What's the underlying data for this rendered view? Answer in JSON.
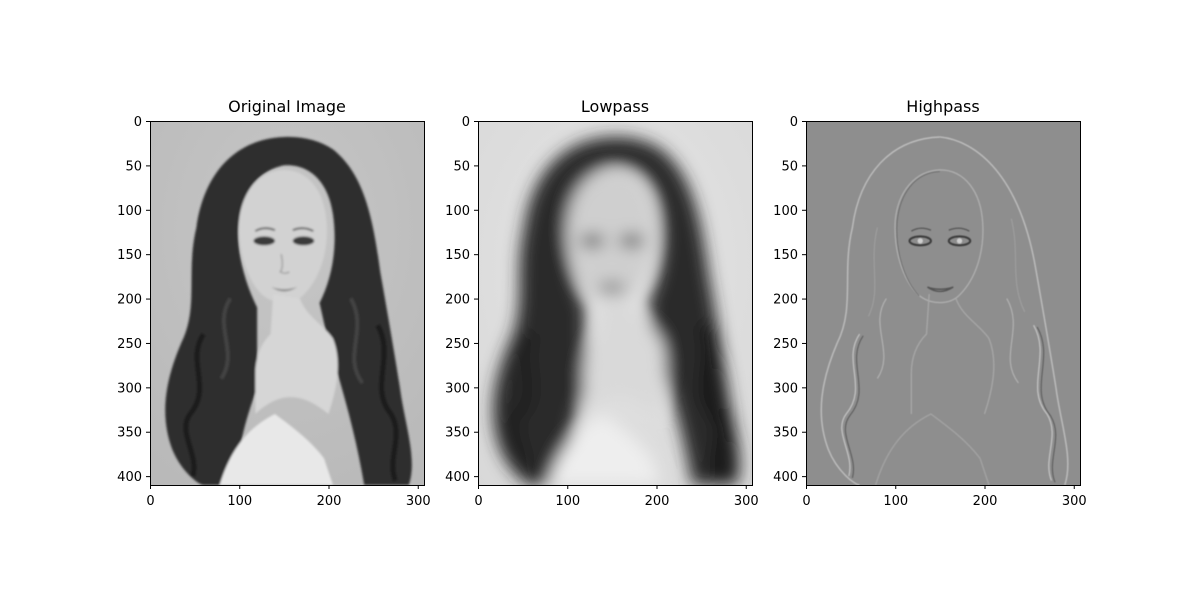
{
  "chart_data": [
    {
      "type": "image",
      "title": "Original Image",
      "xlim": [
        0,
        307
      ],
      "ylim": [
        410,
        0
      ],
      "xticks": [
        0,
        100,
        200,
        300
      ],
      "yticks": [
        0,
        50,
        100,
        150,
        200,
        250,
        300,
        350,
        400
      ],
      "colormap": "gray"
    },
    {
      "type": "image",
      "title": "Lowpass",
      "xlim": [
        0,
        307
      ],
      "ylim": [
        410,
        0
      ],
      "xticks": [
        0,
        100,
        200,
        300
      ],
      "yticks": [
        0,
        50,
        100,
        150,
        200,
        250,
        300,
        350,
        400
      ],
      "colormap": "gray"
    },
    {
      "type": "image",
      "title": "Highpass",
      "xlim": [
        0,
        307
      ],
      "ylim": [
        410,
        0
      ],
      "xticks": [
        0,
        100,
        200,
        300
      ],
      "yticks": [
        0,
        50,
        100,
        150,
        200,
        250,
        300,
        350,
        400
      ],
      "colormap": "gray"
    }
  ]
}
